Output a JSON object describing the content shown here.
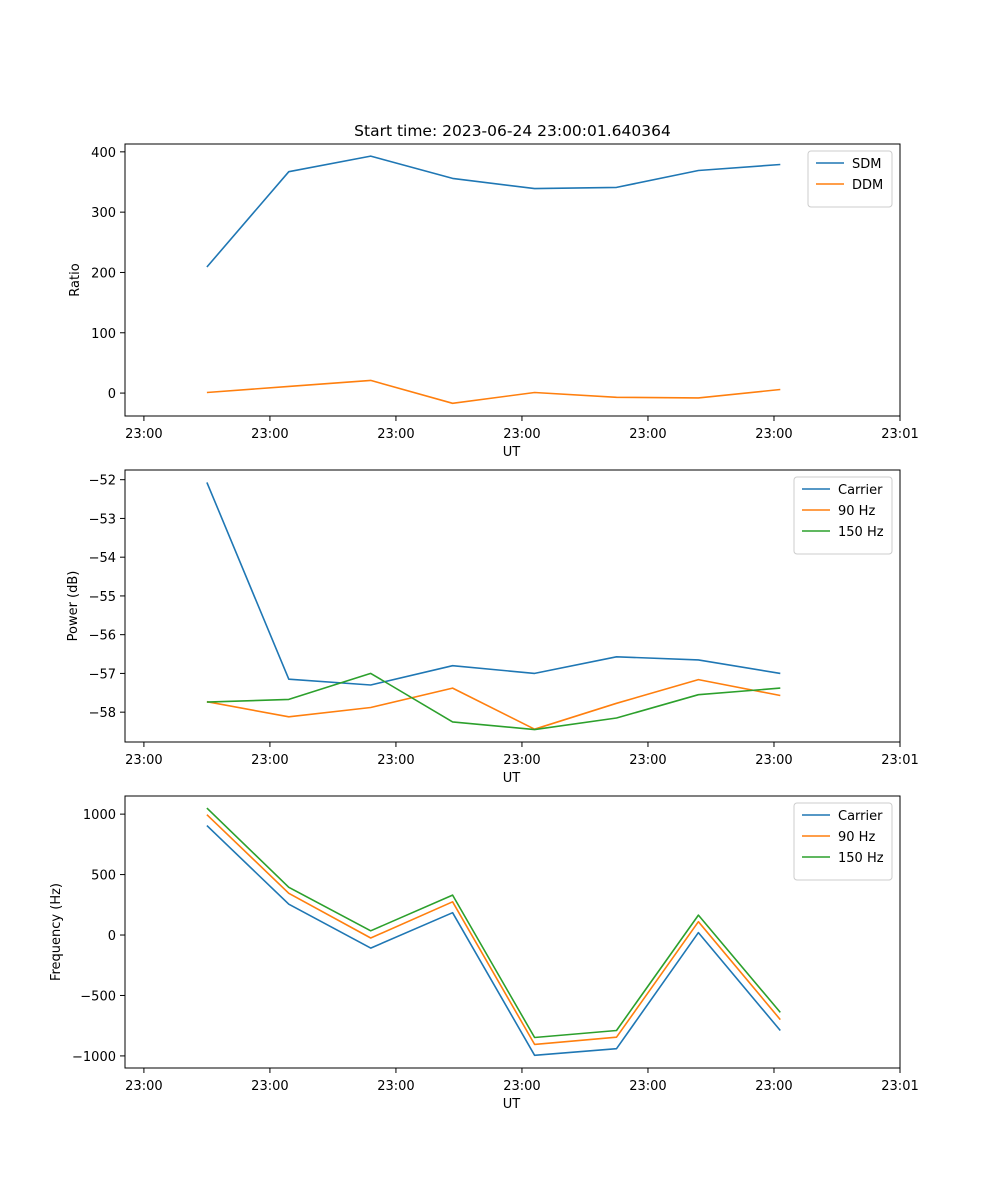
{
  "figure": {
    "title": "Start time: 2023-06-24 23:00:01.640364"
  },
  "chart_data": [
    {
      "type": "line",
      "title": "Start time: 2023-06-24 23:00:01.640364",
      "xlabel": "UT",
      "ylabel": "Ratio",
      "x_ticks": [
        "23:00",
        "23:00",
        "23:00",
        "23:00",
        "23:00",
        "23:00",
        "23:01"
      ],
      "x": [
        0.5,
        1.15,
        1.8,
        2.45,
        3.1,
        3.75,
        4.4,
        5.05
      ],
      "xlim": [
        -0.15,
        6.0
      ],
      "ylim": [
        -38,
        413
      ],
      "yticks": [
        0,
        100,
        200,
        300,
        400
      ],
      "legend": "top-right",
      "grid": false,
      "series": [
        {
          "name": "SDM",
          "color": "#1f77b4",
          "values": [
            209,
            367,
            393,
            356,
            339,
            341,
            369,
            379
          ]
        },
        {
          "name": "DDM",
          "color": "#ff7f0e",
          "values": [
            1,
            11,
            21,
            -17,
            1,
            -7,
            -8,
            6
          ]
        }
      ]
    },
    {
      "type": "line",
      "xlabel": "UT",
      "ylabel": "Power (dB)",
      "x_ticks": [
        "23:00",
        "23:00",
        "23:00",
        "23:00",
        "23:00",
        "23:00",
        "23:01"
      ],
      "x": [
        0.5,
        1.15,
        1.8,
        2.45,
        3.1,
        3.75,
        4.4,
        5.05
      ],
      "xlim": [
        -0.15,
        6.0
      ],
      "ylim": [
        -58.77,
        -51.75
      ],
      "yticks": [
        -52,
        -53,
        -54,
        -55,
        -56,
        -57,
        -58
      ],
      "legend": "top-right",
      "grid": false,
      "series": [
        {
          "name": "Carrier",
          "color": "#1f77b4",
          "values": [
            -52.07,
            -57.15,
            -57.3,
            -56.8,
            -57.0,
            -56.57,
            -56.65,
            -57.0
          ]
        },
        {
          "name": "90 Hz",
          "color": "#ff7f0e",
          "values": [
            -57.73,
            -58.12,
            -57.88,
            -57.38,
            -58.44,
            -57.77,
            -57.16,
            -57.57
          ]
        },
        {
          "name": "150 Hz",
          "color": "#2ca02c",
          "values": [
            -57.74,
            -57.67,
            -57.0,
            -58.25,
            -58.45,
            -58.15,
            -57.55,
            -57.38
          ]
        }
      ]
    },
    {
      "type": "line",
      "xlabel": "UT",
      "ylabel": "Frequency (Hz)",
      "x_ticks": [
        "23:00",
        "23:00",
        "23:00",
        "23:00",
        "23:00",
        "23:00",
        "23:01"
      ],
      "x": [
        0.5,
        1.15,
        1.8,
        2.45,
        3.1,
        3.75,
        4.4,
        5.05
      ],
      "xlim": [
        -0.15,
        6.0
      ],
      "ylim": [
        -1100,
        1150
      ],
      "yticks": [
        1000,
        500,
        0,
        -500,
        -1000
      ],
      "legend": "top-right",
      "grid": false,
      "series": [
        {
          "name": "Carrier",
          "color": "#1f77b4",
          "values": [
            905,
            255,
            -108,
            185,
            -995,
            -940,
            20,
            -790
          ]
        },
        {
          "name": "90 Hz",
          "color": "#ff7f0e",
          "values": [
            995,
            345,
            -25,
            275,
            -905,
            -845,
            110,
            -700
          ]
        },
        {
          "name": "150 Hz",
          "color": "#2ca02c",
          "values": [
            1050,
            395,
            35,
            330,
            -848,
            -790,
            165,
            -640
          ]
        }
      ]
    }
  ]
}
